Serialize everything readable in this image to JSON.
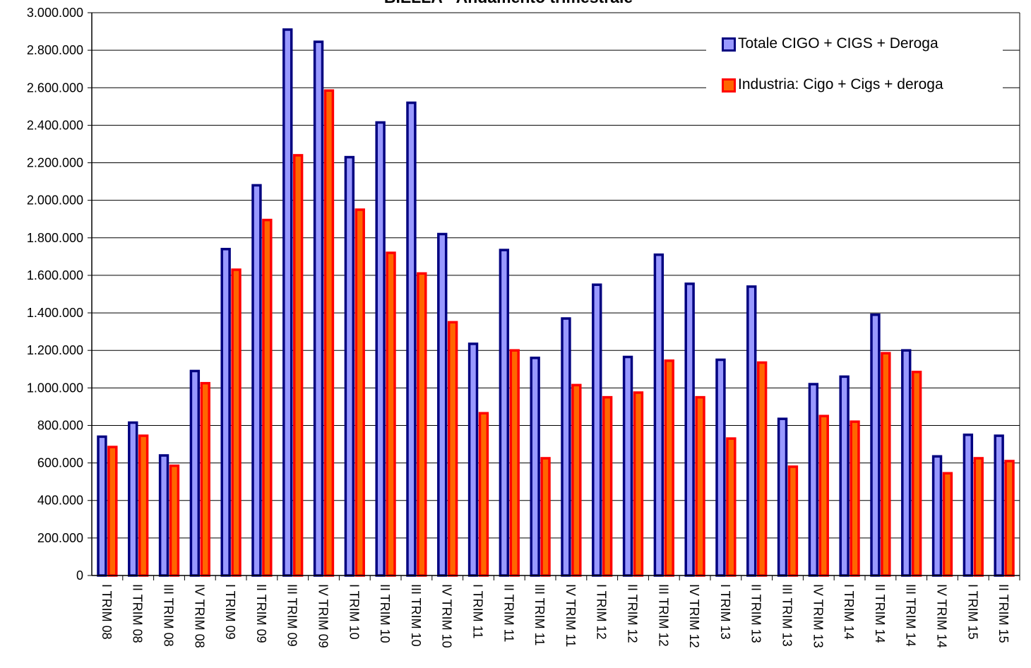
{
  "chart_data": {
    "type": "bar",
    "title": "BIELLA - Andamento trimestrale",
    "categories": [
      "I TRIM 08",
      "II TRIM 08",
      "III TRIM 08",
      "IV TRIM 08",
      "I TRIM 09",
      "II TRIM 09",
      "III TRIM 09",
      "IV TRIM 09",
      "I TRIM 10",
      "II TRIM 10",
      "III TRIM 10",
      "IV TRIM 10",
      "I TRIM 11",
      "II TRIM 11",
      "III TRIM 11",
      "IV TRIM 11",
      "I TRIM 12",
      "II TRIM 12",
      "III TRIM 12",
      "IV TRIM 12",
      "I TRIM 13",
      "II TRIM 13",
      "III TRIM 13",
      "IV TRIM 13",
      "I TRIM 14",
      "II TRIM 14",
      "III TRIM 14",
      "IV TRIM 14",
      "I TRIM 15",
      "II TRIM 15"
    ],
    "series": [
      {
        "name": "Totale CIGO + CIGS + Deroga",
        "color": "#9999ff",
        "edgecolor": "#000080",
        "values": [
          740000,
          815000,
          640000,
          1090000,
          1740000,
          2080000,
          2910000,
          2845000,
          2230000,
          2415000,
          2520000,
          1820000,
          1235000,
          1735000,
          1160000,
          1370000,
          1550000,
          1165000,
          1710000,
          1555000,
          1150000,
          1540000,
          835000,
          1020000,
          1060000,
          1390000,
          1200000,
          635000,
          750000,
          745000
        ]
      },
      {
        "name": "Industria: Cigo + Cigs + deroga",
        "color": "#ff6600",
        "edgecolor": "#ff0000",
        "values": [
          685000,
          745000,
          585000,
          1025000,
          1630000,
          1895000,
          2240000,
          2585000,
          1950000,
          1720000,
          1610000,
          1350000,
          865000,
          1200000,
          625000,
          1015000,
          950000,
          975000,
          1145000,
          950000,
          730000,
          1135000,
          580000,
          850000,
          820000,
          1185000,
          1085000,
          545000,
          625000,
          610000
        ]
      }
    ],
    "ylim": [
      0,
      3000000
    ],
    "yticks": [
      0,
      {
        "value": 200000,
        "label": "200.000"
      },
      {
        "value": 400000,
        "label": "400.000"
      },
      {
        "value": 600000,
        "label": "600.000"
      },
      {
        "value": 800000,
        "label": "800.000"
      },
      {
        "value": 1000000,
        "label": "1.000.000"
      },
      {
        "value": 1200000,
        "label": "1.200.000"
      },
      {
        "value": 1400000,
        "label": "1.400.000"
      },
      {
        "value": 1600000,
        "label": "1.600.000"
      },
      {
        "value": 1800000,
        "label": "1.800.000"
      },
      {
        "value": 2000000,
        "label": "2.000.000"
      },
      {
        "value": 2200000,
        "label": "2.200.000"
      },
      {
        "value": 2400000,
        "label": "2.400.000"
      },
      {
        "value": 2600000,
        "label": "2.600.000"
      },
      {
        "value": 2800000,
        "label": "2.800.000"
      },
      {
        "value": 3000000,
        "label": "3.000.000"
      }
    ],
    "grid": true,
    "legend": "upper right"
  }
}
